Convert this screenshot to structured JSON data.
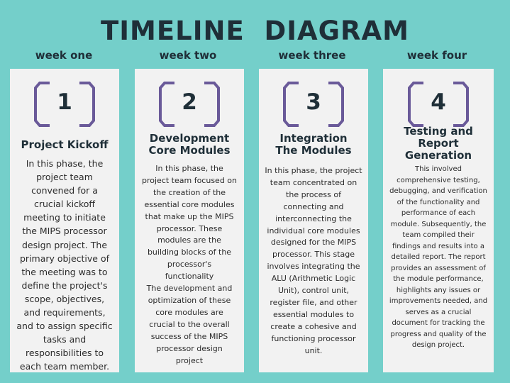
{
  "title": "TIMELINE  DIAGRAM",
  "weeks": [
    "week one",
    "week two",
    "week three",
    "week four"
  ],
  "phases": [
    {
      "number": "1",
      "heading": "Project Kickoff",
      "text": "In this phase, the project team convened for a crucial kickoff meeting to initiate the MIPS processor design project. The primary objective of the meeting was to define the project's scope, objectives, and requirements, and to assign specific tasks and responsibilities to each team member."
    },
    {
      "number": "2",
      "heading": "Development Core Modules",
      "text": "In this phase, the project team focused on the creation of the essential core modules that make up the MIPS processor. These modules are the building blocks of the processor's functionality\nThe development and optimization of these core modules are crucial to the overall success of the MIPS processor design project"
    },
    {
      "number": "3",
      "heading": "Integration The Modules",
      "text": "In this phase, the project team concentrated on the process of connecting and interconnecting the individual core modules designed for the MIPS processor. This stage involves integrating the ALU (Arithmetic Logic Unit), control unit, register file, and other essential modules to create a cohesive and functioning processor unit."
    },
    {
      "number": "4",
      "heading": "Testing and Report Generation",
      "text": "This involved comprehensive testing, debugging, and verification of the functionality and performance of each module. Subsequently, the team compiled their findings and results into a detailed report. The report provides an assessment of the module performance, highlights any issues or improvements needed, and serves as a crucial document for tracking the progress and quality of the design project."
    }
  ],
  "colors": {
    "background": "#74cfca",
    "card": "#f2f2f2",
    "badge_outline": "#6a5a99",
    "text_dark": "#1f2f38"
  }
}
